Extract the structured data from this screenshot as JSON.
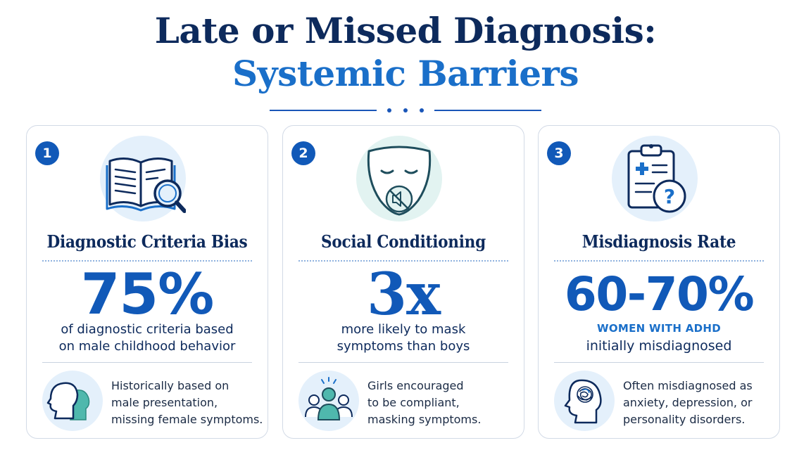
{
  "title": {
    "line1": "Late or Missed Diagnosis:",
    "line2": "Systemic Barriers"
  },
  "cards": [
    {
      "number": "1",
      "title": "Diagnostic Criteria Bias",
      "stat": "75%",
      "stat_desc_line1": "of diagnostic criteria based",
      "stat_desc_line2": "on male childhood behavior",
      "note_line1": "Historically based on",
      "note_line2": "male presentation,",
      "note_line3": "missing female symptoms.",
      "icon": "book-magnifier-icon",
      "note_icon": "head-profiles-icon"
    },
    {
      "number": "2",
      "title": "Social Conditioning",
      "stat": "3x",
      "stat_desc_line1": "more likely to mask",
      "stat_desc_line2": "symptoms than boys",
      "note_line1": "Girls encouraged",
      "note_line2": "to be compliant,",
      "note_line3": "masking symptoms.",
      "icon": "muted-mask-icon",
      "note_icon": "group-people-icon"
    },
    {
      "number": "3",
      "title": "Misdiagnosis Rate",
      "stat": "60-70%",
      "stat_sub": "WOMEN WITH ADHD",
      "stat_desc": "initially misdiagnosed",
      "note_line1": "Often misdiagnosed as",
      "note_line2": "anxiety, depression, or",
      "note_line3": "personality disorders.",
      "icon": "clipboard-question-icon",
      "note_icon": "tangled-brain-icon"
    }
  ],
  "colors": {
    "navy": "#0d2a5c",
    "blue": "#1159b8",
    "light_blue": "#1a6fc9",
    "teal": "#4fb8ad"
  }
}
